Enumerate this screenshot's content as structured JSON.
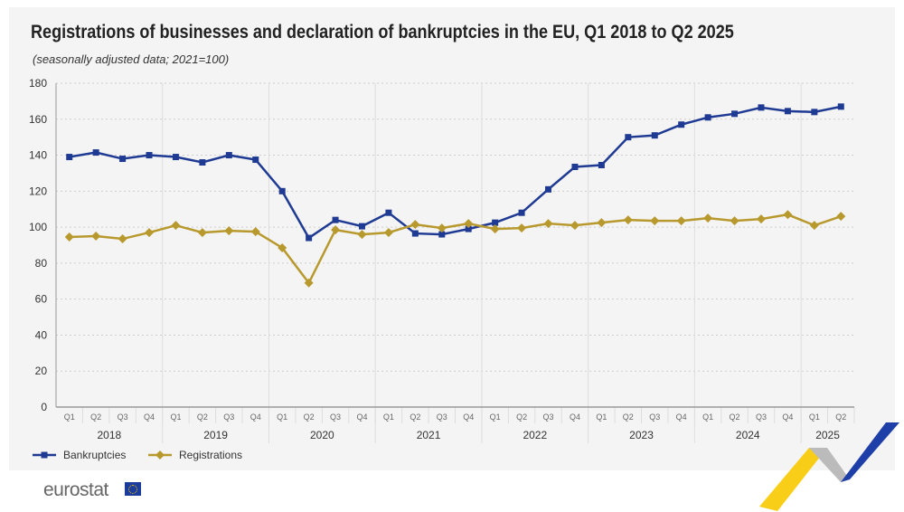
{
  "chart_data": {
    "type": "line",
    "title": "Registrations of businesses and declaration of bankruptcies in the EU, Q1 2018 to Q2 2025",
    "subtitle": "(seasonally adjusted data; 2021=100)",
    "x_quarters": [
      "Q1",
      "Q2",
      "Q3",
      "Q4",
      "Q1",
      "Q2",
      "Q3",
      "Q4",
      "Q1",
      "Q2",
      "Q3",
      "Q4",
      "Q1",
      "Q2",
      "Q3",
      "Q4",
      "Q1",
      "Q2",
      "Q3",
      "Q4",
      "Q1",
      "Q2",
      "Q3",
      "Q4",
      "Q1",
      "Q2",
      "Q3",
      "Q4",
      "Q1",
      "Q2"
    ],
    "x_years": [
      "2018",
      "2019",
      "2020",
      "2021",
      "2022",
      "2023",
      "2024",
      "2025"
    ],
    "ylim": [
      0,
      180
    ],
    "yticks": [
      0,
      20,
      40,
      60,
      80,
      100,
      120,
      140,
      160,
      180
    ],
    "grid": "horizontal dotted",
    "legend": "bottom-left",
    "series": [
      {
        "name": "Bankruptcies",
        "color": "#1f3a93",
        "marker": "square",
        "values": [
          139,
          141.5,
          138,
          140,
          139,
          136,
          140,
          137.5,
          120,
          94,
          104,
          100.5,
          108,
          96.5,
          96,
          99,
          102.5,
          108,
          121,
          133.5,
          134.5,
          150,
          151,
          157,
          161,
          163,
          166.5,
          164.5,
          164,
          167
        ]
      },
      {
        "name": "Registrations",
        "color": "#b8992e",
        "marker": "diamond",
        "values": [
          94.5,
          95,
          93.5,
          97,
          101,
          97,
          98,
          97.5,
          88.5,
          69,
          98.5,
          96,
          97,
          101.5,
          99.5,
          102,
          99,
          99.5,
          102,
          101,
          102.5,
          104,
          103.5,
          103.5,
          105,
          103.5,
          104.5,
          107,
          101,
          106
        ]
      }
    ]
  },
  "brand": {
    "logo": "eurostat"
  }
}
